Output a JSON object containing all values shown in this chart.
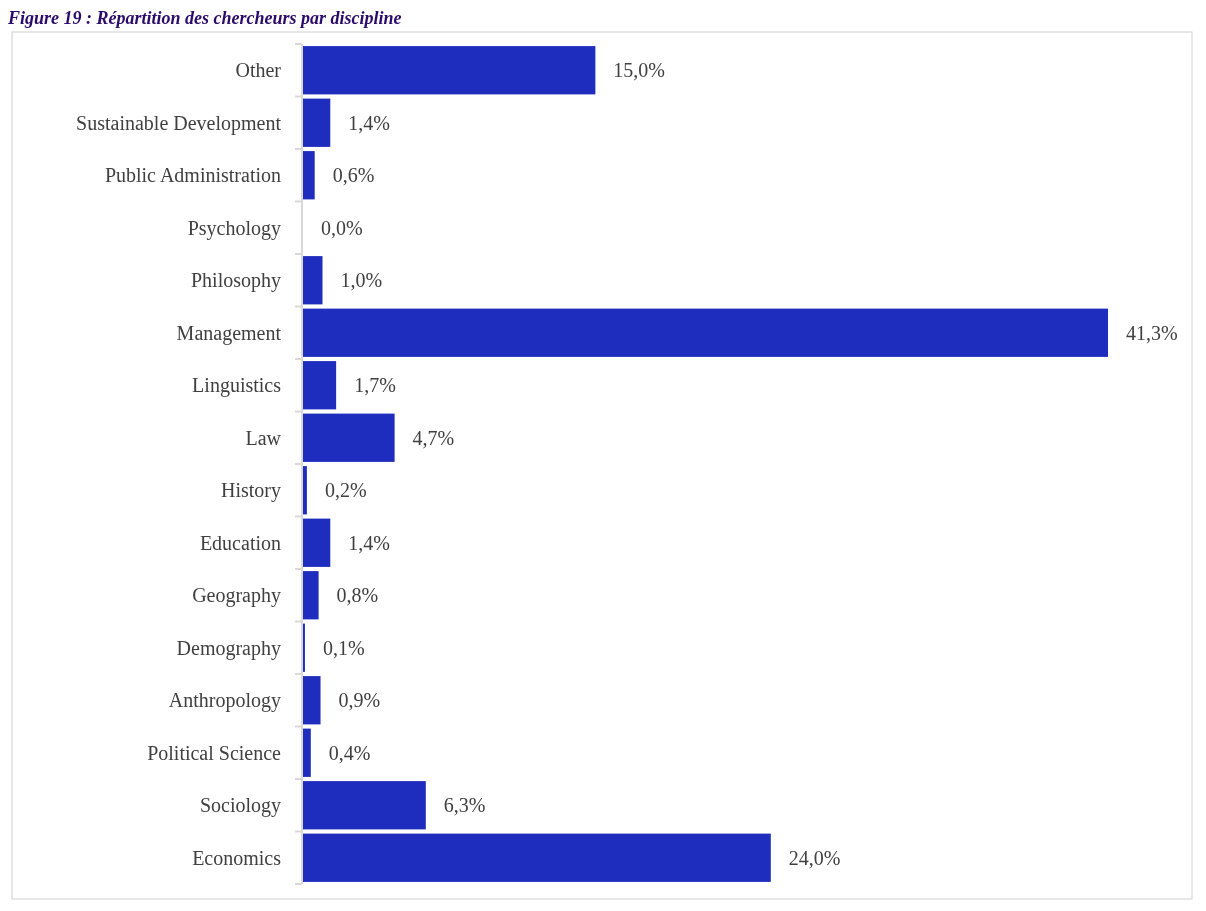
{
  "chart_data": {
    "type": "bar",
    "orientation": "horizontal",
    "title": "Figure 19 : Répartition des chercheurs par discipline",
    "categories": [
      "Other",
      "Sustainable Development",
      "Public Administration",
      "Psychology",
      "Philosophy",
      "Management",
      "Linguistics",
      "Law",
      "History",
      "Education",
      "Geography",
      "Demography",
      "Anthropology",
      "Political Science",
      "Sociology",
      "Economics"
    ],
    "values": [
      15.0,
      1.4,
      0.6,
      0.0,
      1.0,
      41.3,
      1.7,
      4.7,
      0.2,
      1.4,
      0.8,
      0.1,
      0.9,
      0.4,
      6.3,
      24.0
    ],
    "value_labels": [
      "15,0%",
      "1,4%",
      "0,6%",
      "0,0%",
      "1,0%",
      "41,3%",
      "1,7%",
      "4,7%",
      "0,2%",
      "1,4%",
      "0,8%",
      "0,1%",
      "0,9%",
      "0,4%",
      "6,3%",
      "24,0%"
    ],
    "color": "#1f2dbf"
  }
}
